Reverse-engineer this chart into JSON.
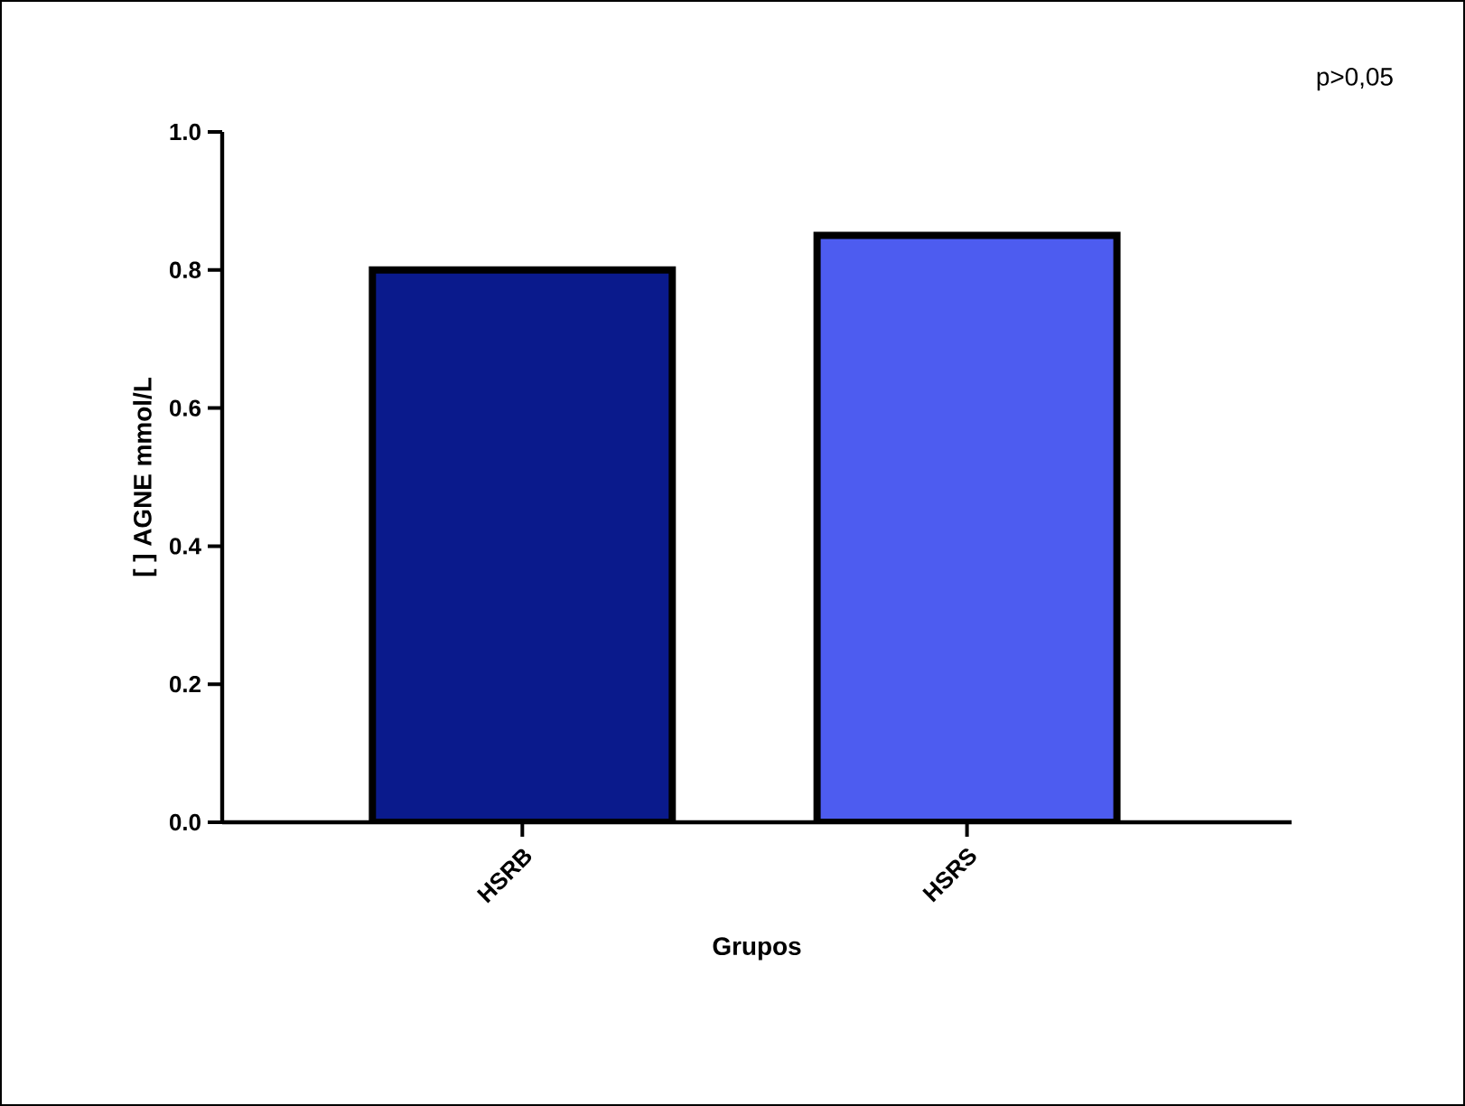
{
  "chart_data": {
    "type": "bar",
    "categories": [
      "HSRB",
      "HSRS"
    ],
    "values": [
      0.8,
      0.85
    ],
    "colors": [
      "#0a1a8c",
      "#4d5cf0"
    ],
    "ylim": [
      0,
      1.0
    ],
    "yticks": [
      {
        "value": 0,
        "label": "0.0"
      },
      {
        "value": 0.2,
        "label": "0.2"
      },
      {
        "value": 0.4,
        "label": "0.4"
      },
      {
        "value": 0.6,
        "label": "0.6"
      },
      {
        "value": 0.8,
        "label": "0.8"
      },
      {
        "value": 1.0,
        "label": "1.0"
      }
    ],
    "xlabel": "Grupos",
    "ylabel": "[ ] AGNE mmol/L",
    "annotations": [
      "p>0,05"
    ]
  }
}
